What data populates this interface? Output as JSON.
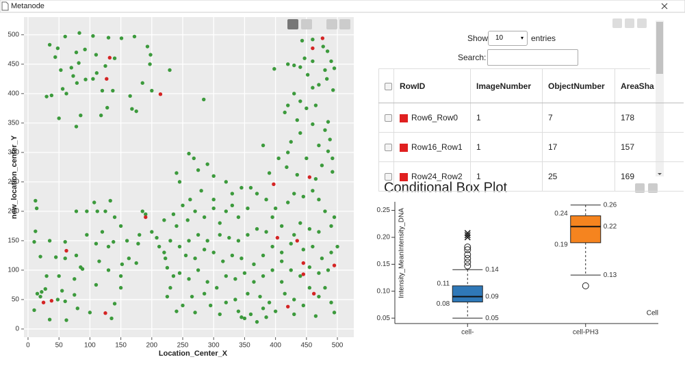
{
  "window_title": "Metanode",
  "chart_data": [
    {
      "type": "scatter",
      "x_label": "Location_Center_X",
      "y_label": "new_location_center_Y",
      "xlim": [
        -6.6,
        526.5
      ],
      "ylim": [
        -14,
        530
      ],
      "xticks": [
        0,
        50,
        100,
        150,
        200,
        250,
        300,
        350,
        400,
        450,
        500
      ],
      "yticks": [
        0,
        50,
        100,
        150,
        200,
        250,
        300,
        350,
        400,
        450,
        500
      ],
      "grid": true,
      "series": [
        {
          "color": "#3c9a3c",
          "x": [
            35,
            48,
            60,
            78,
            83,
            92,
            105,
            130,
            151,
            172,
            193,
            198,
            44,
            53,
            70,
            82,
            110,
            125,
            140,
            197,
            229,
            56,
            38,
            62,
            79,
            93,
            105,
            120,
            137,
            165,
            185,
            200,
            30,
            50,
            78,
            85,
            118,
            128,
            168,
            175,
            284,
            73,
            111,
            443,
            460,
            477,
            484,
            460,
            447,
            440,
            452,
            480,
            490,
            495,
            483,
            493,
            470,
            460,
            430,
            420,
            398,
            430,
            440,
            450,
            465,
            420,
            415,
            435,
            460,
            480,
            485,
            488,
            470,
            440,
            425,
            380,
            485,
            492,
            492,
            475,
            450,
            420,
            405,
            390,
            418,
            435,
            465,
            12,
            14,
            12,
            10,
            20,
            35,
            60,
            78,
            95,
            107,
            112,
            125,
            133,
            140,
            150,
            160,
            163,
            130,
            110,
            95,
            78,
            60,
            45,
            85,
            115,
            138,
            120,
            152,
            175,
            178,
            180,
            185,
            190,
            200,
            208,
            212,
            220,
            222,
            225,
            235,
            30,
            22,
            15,
            28,
            10,
            35,
            50,
            55,
            60,
            75,
            75,
            80,
            62,
            110,
            130,
            150,
            150,
            140,
            135,
            100,
            48,
            88,
            20,
            240,
            245,
            260,
            268,
            275,
            290,
            300,
            320,
            300,
            280,
            262,
            250,
            235,
            240,
            258,
            270,
            285,
            300,
            310,
            320,
            330,
            340,
            355,
            360,
            345,
            330,
            370,
            385,
            400,
            420,
            430,
            445,
            460,
            470,
            480,
            495,
            490,
            470,
            455,
            440,
            430,
            410,
            395,
            385,
            370,
            355,
            340,
            325,
            310,
            290,
            275,
            260,
            245,
            230,
            220,
            255,
            270,
            285,
            300,
            315,
            330,
            345,
            365,
            380,
            395,
            410,
            425,
            445,
            460,
            475,
            490,
            500,
            485,
            470,
            455,
            440,
            425,
            410,
            395,
            380,
            365,
            350,
            335,
            320,
            305,
            290,
            275,
            260,
            245,
            230,
            225,
            240,
            270,
            295,
            310,
            340,
            345,
            360,
            370,
            380,
            390,
            400,
            415,
            430,
            445,
            455,
            470,
            480,
            490,
            495,
            465,
            430,
            410,
            375,
            355,
            335,
            320,
            285,
            265,
            250,
            350,
            385
          ],
          "values": [
            483,
            477,
            497,
            470,
            503,
            475,
            498,
            495,
            494,
            497,
            480,
            466,
            462,
            440,
            444,
            452,
            466,
            447,
            460,
            450,
            440,
            408,
            397,
            400,
            418,
            424,
            425,
            405,
            405,
            396,
            418,
            405,
            395,
            358,
            344,
            363,
            363,
            376,
            374,
            370,
            390,
            430,
            435,
            490,
            492,
            480,
            472,
            455,
            460,
            445,
            432,
            440,
            455,
            443,
            425,
            406,
            415,
            410,
            448,
            450,
            442,
            400,
            387,
            375,
            380,
            380,
            368,
            355,
            348,
            338,
            352,
            322,
            312,
            333,
            318,
            312,
            302,
            290,
            267,
            278,
            290,
            300,
            290,
            265,
            275,
            262,
            255,
            218,
            205,
            166,
            148,
            123,
            150,
            148,
            200,
            200,
            215,
            200,
            200,
            218,
            190,
            175,
            150,
            120,
            140,
            145,
            160,
            125,
            120,
            122,
            105,
            115,
            148,
            165,
            110,
            112,
            145,
            160,
            200,
            195,
            165,
            155,
            140,
            185,
            120,
            104,
            90,
            90,
            63,
            60,
            68,
            32,
            16,
            90,
            65,
            47,
            85,
            58,
            35,
            15,
            75,
            100,
            90,
            70,
            43,
            18,
            28,
            50,
            102,
            55,
            265,
            250,
            298,
            290,
            270,
            280,
            260,
            250,
            220,
            235,
            220,
            210,
            195,
            175,
            185,
            200,
            190,
            205,
            180,
            200,
            210,
            190,
            205,
            240,
            240,
            230,
            230,
            220,
            205,
            215,
            230,
            225,
            235,
            220,
            200,
            190,
            175,
            165,
            170,
            180,
            160,
            175,
            190,
            165,
            170,
            160,
            150,
            155,
            160,
            150,
            160,
            150,
            140,
            150,
            130,
            125,
            120,
            135,
            130,
            115,
            125,
            120,
            110,
            125,
            140,
            130,
            145,
            135,
            140,
            120,
            130,
            140,
            100,
            95,
            105,
            90,
            100,
            115,
            100,
            90,
            80,
            95,
            85,
            90,
            70,
            80,
            100,
            85,
            95,
            70,
            55,
            30,
            28,
            40,
            25,
            30,
            20,
            25,
            12,
            35,
            45,
            30,
            60,
            50,
            40,
            70,
            55,
            70,
            45,
            28,
            22,
            25,
            80,
            55,
            60,
            50,
            45,
            60,
            55,
            40,
            18,
            20
          ]
        },
        {
          "color": "#d42424",
          "x": [
            132,
            127,
            214,
            460,
            476,
            25,
            38,
            62,
            125,
            190,
            397,
            403,
            435,
            445,
            445,
            462,
            495,
            420,
            455
          ],
          "values": [
            461,
            425,
            399,
            477,
            494,
            45,
            48,
            133,
            27,
            190,
            246,
            155,
            150,
            112,
            93,
            60,
            108,
            38,
            258
          ]
        }
      ]
    },
    {
      "type": "box",
      "title": "Conditional Box Plot",
      "y_label": "Intensity_MeanIntensity_DNA",
      "x_label": "Cell",
      "categories": [
        "cell-",
        "cell-PH3"
      ],
      "ylim": [
        0.04,
        0.266
      ],
      "yticks": [
        0.05,
        {
          "value": 0.1,
          "label": "0.10"
        },
        0.15,
        {
          "value": 0.2,
          "label": "0.20"
        },
        0.25
      ],
      "boxes": [
        {
          "color": "#2f78b8",
          "min": 0.05,
          "q1": 0.08,
          "median": 0.09,
          "q3": 0.11,
          "max": 0.14,
          "outliers": [
            0.182,
            0.177,
            0.168,
            0.161,
            0.154,
            0.147
          ],
          "extremes": [
            0.208,
            0.204,
            0.2
          ]
        },
        {
          "color": "#f5841f",
          "min": 0.13,
          "q1": 0.19,
          "median": 0.22,
          "q3": 0.24,
          "max": 0.26,
          "outliers": [
            0.11
          ],
          "extremes": []
        }
      ]
    }
  ],
  "table": {
    "show": "Show",
    "page_size": 10,
    "entries": "entries",
    "search": "Search:",
    "columns": [
      "RowID",
      "ImageNumber",
      "ObjectNumber",
      "AreaSha"
    ],
    "rows": [
      [
        "Row6_Row0",
        1,
        7,
        178
      ],
      [
        "Row16_Row1",
        1,
        17,
        157
      ],
      [
        "Row24_Row2",
        1,
        25,
        169
      ]
    ],
    "row_color": "#e02020"
  }
}
